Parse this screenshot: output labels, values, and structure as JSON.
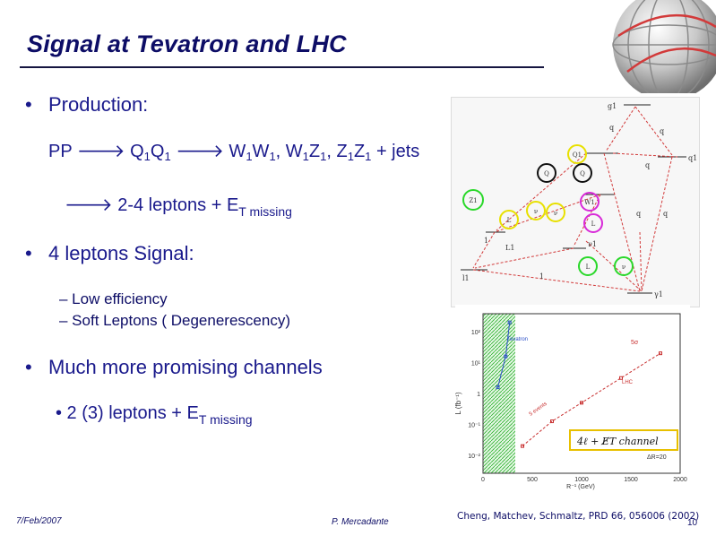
{
  "title": "Signal at Tevatron and LHC",
  "bullets": [
    {
      "label": "Production:"
    },
    {
      "label": "4 leptons Signal:"
    },
    {
      "label": "Much more promising channels"
    }
  ],
  "production_line": {
    "p1": "PP ",
    "p2": " Q",
    "s1": "1",
    "p3": "Q",
    "s2": "1",
    "p4": " ",
    "p5": " W",
    "s3": "1",
    "p6": "W",
    "s4": "1",
    "p7": ", W",
    "s5": "1",
    "p8": "Z",
    "s6": "1",
    "p9": ", Z",
    "s7": "1",
    "p10": "Z",
    "s8": "1",
    "p11": " + jets"
  },
  "leptons_line": {
    "p1": " 2-4 leptons + E",
    "s1": "T missing"
  },
  "four_lepton_items": [
    "– Low efficiency",
    "– Soft Leptons ( Degenerescency)"
  ],
  "channel_line": {
    "p1": "• 2 (3) leptons + E",
    "s1": "T missing"
  },
  "footer": {
    "date": "7/Feb/2007",
    "author": "P. Mercadante",
    "citation": "Cheng, Matchev, Schmaltz, PRD 66, 056006 (2002)",
    "page": "10"
  },
  "colors": {
    "title": "#0d0d66",
    "text": "#1a1a8c",
    "arrow": "#1a1a8c"
  },
  "diagram": {
    "labels": [
      "g1",
      "q",
      "q",
      "q1",
      "Q1",
      "Q",
      "Q",
      "W1",
      "Z1",
      "L",
      "ν",
      "ν",
      "L",
      "q",
      "q",
      "1",
      "L1",
      "ν1",
      "1",
      "L",
      "ν",
      "l1",
      "1",
      "γ1"
    ]
  },
  "chart_data": {
    "type": "line",
    "ylabel": "L (fb⁻¹)",
    "xlabel": "R⁻¹ (GeV)",
    "xticks": [
      "0",
      "500",
      "1000",
      "1500",
      "2000"
    ],
    "yticks": [
      "10²",
      "10¹",
      "1",
      "10⁻¹",
      "10⁻²"
    ],
    "annotations": [
      "Tevatron",
      "LHC",
      "5σ",
      "5 events",
      "ΔR=20"
    ],
    "legend_text": "4ℓ + E̸T channel",
    "xlim": [
      0,
      2000
    ],
    "series": [
      {
        "name": "Tevatron",
        "x": [
          150,
          230,
          270
        ],
        "y": [
          0.2,
          1.2,
          2.3
        ]
      },
      {
        "name": "LHC",
        "x": [
          400,
          700,
          1000,
          1400,
          1800
        ],
        "y": [
          -1.7,
          -0.9,
          -0.3,
          0.5,
          1.3
        ]
      }
    ]
  }
}
